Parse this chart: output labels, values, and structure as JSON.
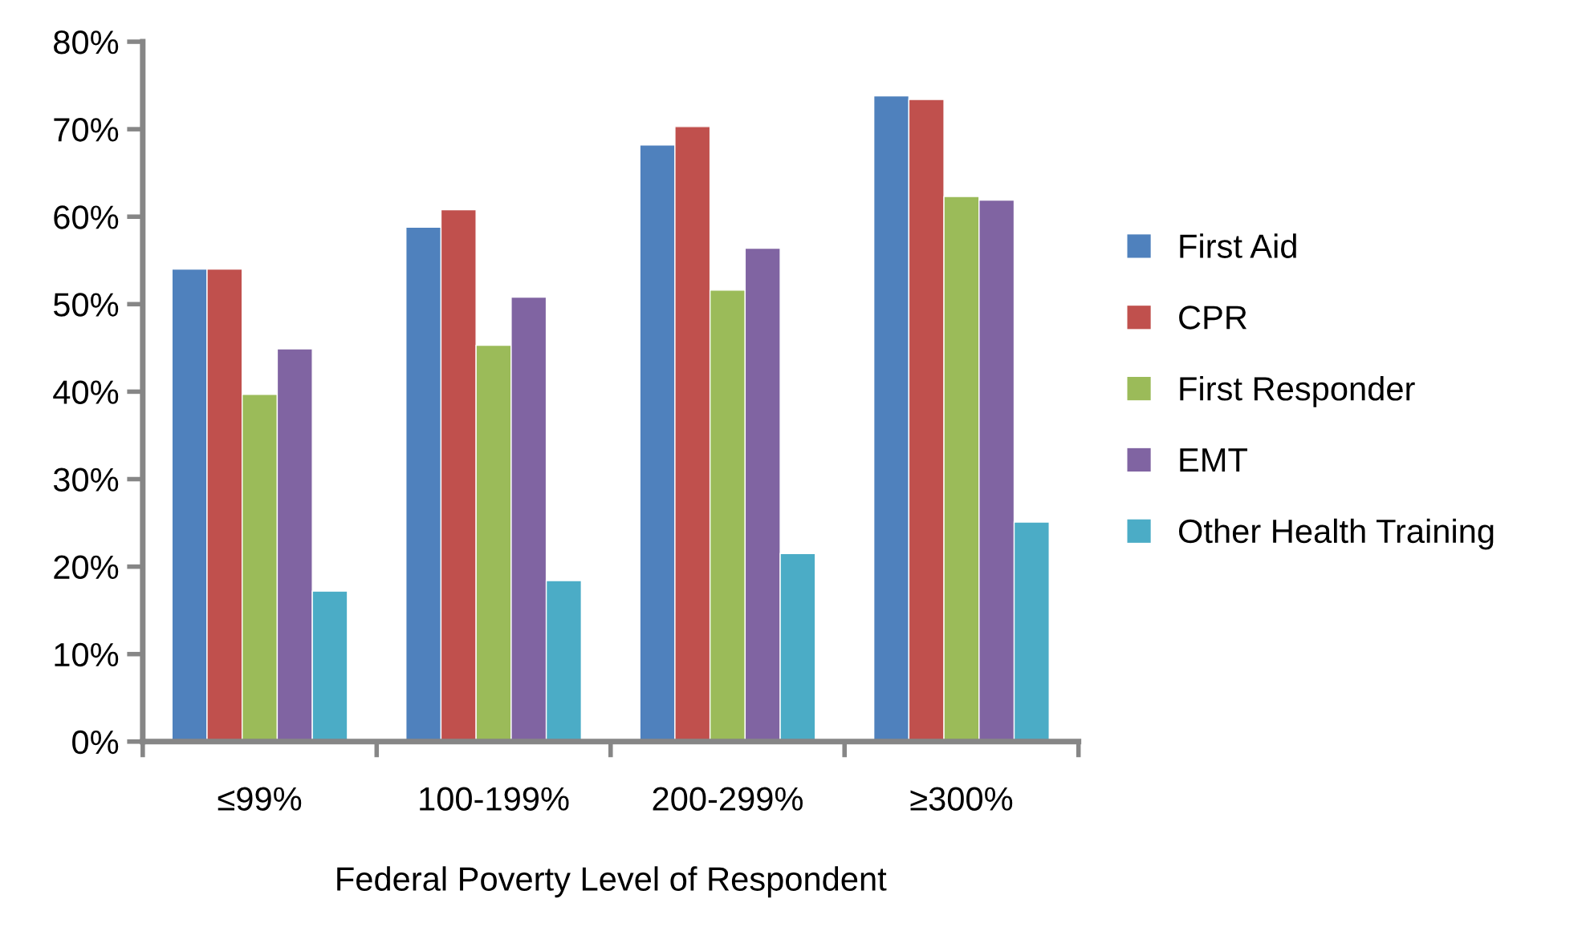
{
  "chart_data": {
    "type": "bar",
    "xlabel": "Federal Poverty Level of Respondent",
    "categories": [
      "≤99%",
      "100-199%",
      "200-299%",
      "≥300%"
    ],
    "series": [
      {
        "name": "First Aid",
        "color": "#4f81bd",
        "values": [
          54.0,
          58.8,
          68.2,
          73.8
        ]
      },
      {
        "name": "CPR",
        "color": "#c0504d",
        "values": [
          54.0,
          60.8,
          70.3,
          73.4
        ]
      },
      {
        "name": "First Responder",
        "color": "#9bbb59",
        "values": [
          39.7,
          45.3,
          51.6,
          62.3
        ]
      },
      {
        "name": "EMT",
        "color": "#8064a2",
        "values": [
          44.9,
          50.8,
          56.4,
          61.9
        ]
      },
      {
        "name": "Other Health Training",
        "color": "#4bacc6",
        "values": [
          17.2,
          18.4,
          21.5,
          25.1
        ]
      }
    ],
    "ylim": [
      0,
      80
    ],
    "yticks": [
      {
        "value": 0,
        "label": "0%"
      },
      {
        "value": 10,
        "label": "10%"
      },
      {
        "value": 20,
        "label": "20%"
      },
      {
        "value": 30,
        "label": "30%"
      },
      {
        "value": 40,
        "label": "40%"
      },
      {
        "value": 50,
        "label": "50%"
      },
      {
        "value": 60,
        "label": "60%"
      },
      {
        "value": 70,
        "label": "70%"
      },
      {
        "value": 80,
        "label": "80%"
      }
    ],
    "grid": false,
    "legend": "right"
  }
}
